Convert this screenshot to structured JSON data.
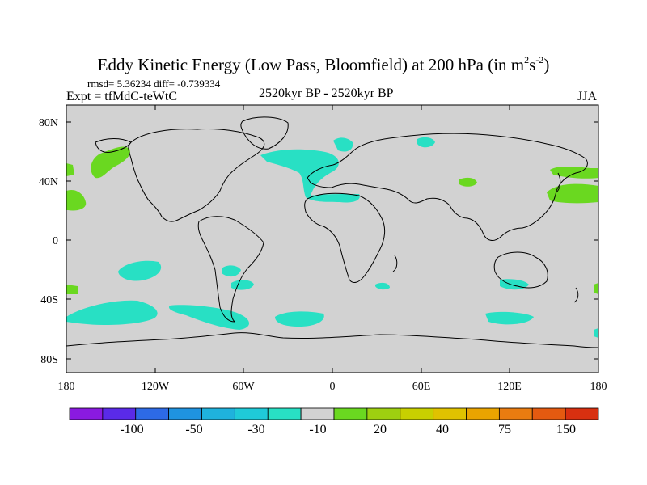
{
  "title": {
    "main": "Eddy Kinetic Energy (Low Pass, Bloomfield) at 200 hPa (in m",
    "sup1": "2",
    "mid": "s",
    "sup2": "-2",
    "end": ")"
  },
  "stats": {
    "rmsd_label": "rmsd=",
    "rmsd": "5.36234",
    "diff_label": "diff=",
    "diff": "-0.739334"
  },
  "expt": "Expt = tfMdC-teWtC",
  "period": "2520kyr BP - 2520kyr BP",
  "season": "JJA",
  "map": {
    "lat_labels": [
      "80N",
      "40N",
      "0",
      "40S",
      "80S"
    ],
    "lon_labels": [
      "180",
      "120W",
      "60W",
      "0",
      "60E",
      "120E",
      "180"
    ],
    "background_color": "#d2d2d2"
  },
  "colorbar": {
    "colors": [
      "#8a1ae0",
      "#5a2ae8",
      "#2d6ae6",
      "#1f93e0",
      "#1fb2dd",
      "#1fcad8",
      "#28e0c4",
      "#d2d2d2",
      "#6ad820",
      "#9ed010",
      "#c8d000",
      "#e0c200",
      "#eaa400",
      "#ea7c10",
      "#e45a10",
      "#d83010"
    ],
    "labels": [
      "-100",
      "-50",
      "-30",
      "-10",
      "20",
      "40",
      "75",
      "150"
    ]
  }
}
